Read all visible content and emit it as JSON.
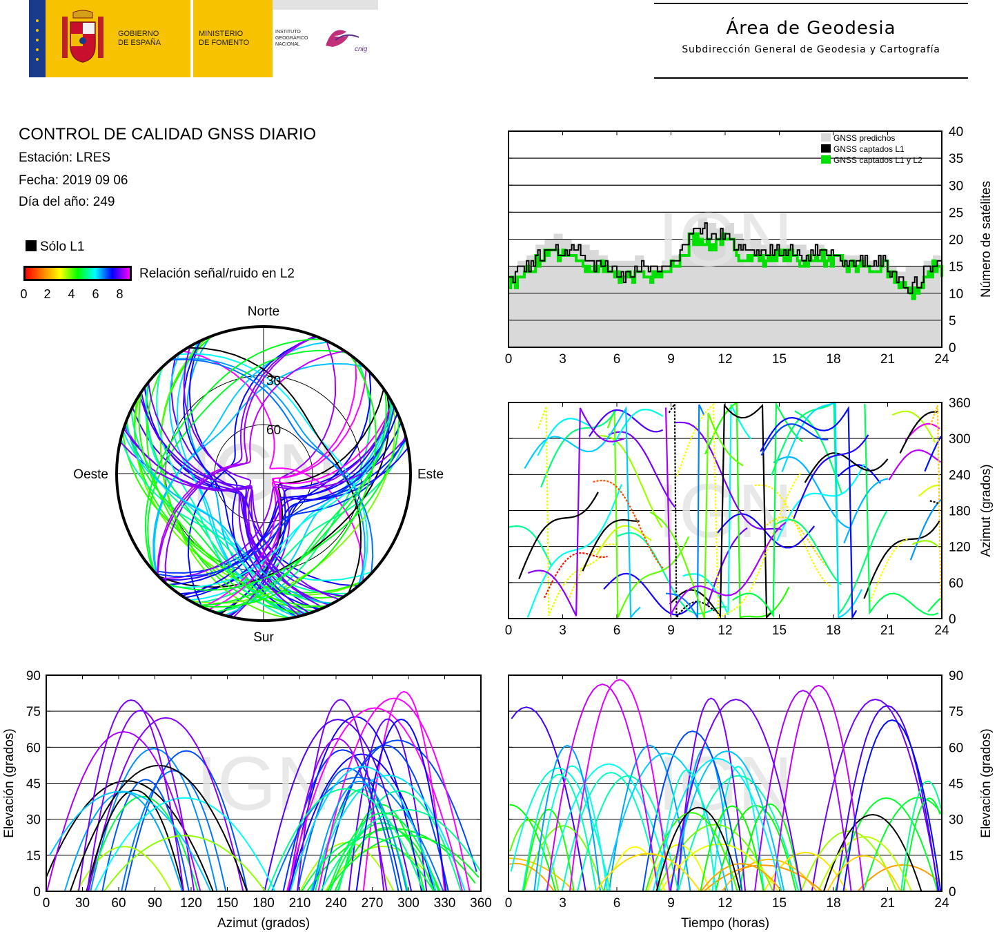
{
  "header": {
    "gobierno": [
      "GOBIERNO",
      "DE ESPAÑA"
    ],
    "ministerio": [
      "MINISTERIO",
      "DE FOMENTO"
    ],
    "ign": [
      "INSTITUTO",
      "GEOGRÁFICO",
      "NACIONAL"
    ],
    "cnig": "cnig",
    "area_title": "Área de Geodesia",
    "area_subtitle": "Subdirección General de Geodesia y Cartografía"
  },
  "report": {
    "title": "CONTROL DE CALIDAD GNSS DIARIO",
    "station": "Estación: LRES",
    "date": "Fecha: 2019 09 06",
    "doy": "Día del año: 249"
  },
  "legend": {
    "l1_only": "Sólo L1",
    "snr_label": "Relación señal/ruido en L2",
    "snr_ticks": [
      "0",
      "2",
      "4",
      "6",
      "8"
    ]
  },
  "watermark": "IGN",
  "chart_data": [
    {
      "type": "line",
      "ylabel": "Número de satélites",
      "xlim": [
        0,
        24
      ],
      "ylim": [
        0,
        40
      ],
      "x_ticks": [
        "0",
        "3",
        "6",
        "9",
        "12",
        "15",
        "18",
        "21",
        "24"
      ],
      "y_ticks": [
        "0",
        "5",
        "10",
        "15",
        "20",
        "25",
        "30",
        "35",
        "40"
      ],
      "legend_placement": "top-right",
      "series": [
        {
          "name": "GNSS predichos",
          "color": "#d9d9d9",
          "x": [
            0,
            0.5,
            1,
            1.5,
            2,
            2.5,
            3,
            3.5,
            4,
            4.5,
            5,
            5.5,
            6,
            6.5,
            7,
            7.5,
            8,
            8.5,
            9,
            9.5,
            10,
            10.5,
            11,
            11.5,
            12,
            12.5,
            13,
            13.5,
            14,
            14.5,
            15,
            15.5,
            16,
            16.5,
            17,
            17.5,
            18,
            18.5,
            19,
            19.5,
            20,
            20.5,
            21,
            21.5,
            22,
            22.5,
            23,
            23.5,
            24
          ],
          "values": [
            15,
            16,
            17,
            19,
            20,
            21,
            20,
            19,
            19,
            18,
            17,
            16,
            16,
            16,
            17,
            15,
            15,
            16,
            17,
            19,
            22,
            24,
            23,
            22,
            23,
            21,
            20,
            20,
            19,
            19,
            19,
            19,
            19,
            18,
            19,
            18,
            17,
            17,
            17,
            17,
            16,
            17,
            15,
            14,
            15,
            15,
            16,
            17,
            17
          ]
        },
        {
          "name": "GNSS captados L1",
          "color": "#000000",
          "x": [
            0,
            0.5,
            1,
            1.5,
            2,
            2.5,
            3,
            3.5,
            4,
            4.5,
            5,
            5.5,
            6,
            6.5,
            7,
            7.5,
            8,
            8.5,
            9,
            9.5,
            10,
            10.5,
            11,
            11.5,
            12,
            12.5,
            13,
            13.5,
            14,
            14.5,
            15,
            15.5,
            16,
            16.5,
            17,
            17.5,
            18,
            18.5,
            19,
            19.5,
            20,
            20.5,
            21,
            21.5,
            22,
            22.5,
            23,
            23.5,
            24
          ],
          "values": [
            13,
            14,
            15,
            17,
            19,
            18,
            18,
            18,
            17,
            15,
            16,
            15,
            13,
            14,
            15,
            14,
            14,
            15,
            16,
            18,
            21,
            22,
            20,
            21,
            20,
            18,
            18,
            18,
            17,
            18,
            18,
            18,
            17,
            17,
            18,
            17,
            17,
            16,
            16,
            16,
            15,
            16,
            13,
            12,
            11,
            12,
            14,
            16,
            15
          ]
        },
        {
          "name": "GNSS captados L1 y L2",
          "color": "#00e000",
          "x": [
            0,
            0.5,
            1,
            1.5,
            2,
            2.5,
            3,
            3.5,
            4,
            4.5,
            5,
            5.5,
            6,
            6.5,
            7,
            7.5,
            8,
            8.5,
            9,
            9.5,
            10,
            10.5,
            11,
            11.5,
            12,
            12.5,
            13,
            13.5,
            14,
            14.5,
            15,
            15.5,
            16,
            16.5,
            17,
            17.5,
            18,
            18.5,
            19,
            19.5,
            20,
            20.5,
            21,
            21.5,
            22,
            22.5,
            23,
            23.5,
            24
          ],
          "values": [
            12,
            13,
            14,
            16,
            18,
            17,
            17,
            16,
            15,
            14,
            15,
            14,
            13,
            13,
            14,
            13,
            13,
            14,
            15,
            17,
            20,
            20,
            19,
            20,
            19,
            17,
            17,
            17,
            16,
            17,
            17,
            17,
            16,
            16,
            17,
            16,
            16,
            15,
            15,
            15,
            14,
            15,
            13,
            12,
            10,
            11,
            13,
            15,
            14
          ]
        }
      ]
    },
    {
      "type": "scatter",
      "ylabel": "Azimut (grados)",
      "xlim": [
        0,
        24
      ],
      "ylim": [
        0,
        360
      ],
      "x_ticks": [
        "0",
        "3",
        "6",
        "9",
        "12",
        "15",
        "18",
        "21",
        "24"
      ],
      "y_ticks": [
        "0",
        "60",
        "120",
        "180",
        "240",
        "300",
        "360"
      ]
    },
    {
      "type": "scatter",
      "xlabel": "Azimut (grados)",
      "ylabel": "Elevación (grados)",
      "xlim": [
        0,
        360
      ],
      "ylim": [
        0,
        90
      ],
      "x_ticks": [
        "0",
        "30",
        "60",
        "90",
        "120",
        "150",
        "180",
        "210",
        "240",
        "270",
        "300",
        "330",
        "360"
      ],
      "y_ticks": [
        "0",
        "15",
        "30",
        "45",
        "60",
        "75",
        "90"
      ]
    },
    {
      "type": "scatter",
      "xlabel": "Tiempo (horas)",
      "ylabel": "Elevación (grados)",
      "xlim": [
        0,
        24
      ],
      "ylim": [
        0,
        90
      ],
      "x_ticks": [
        "0",
        "3",
        "6",
        "9",
        "12",
        "15",
        "18",
        "21",
        "24"
      ],
      "y_ticks": [
        "0",
        "15",
        "30",
        "45",
        "60",
        "75",
        "90"
      ]
    },
    {
      "type": "scatter",
      "polar": true,
      "cardinals": {
        "north": "Norte",
        "south": "Sur",
        "east": "Este",
        "west": "Oeste"
      },
      "rings": [
        "30",
        "60"
      ]
    }
  ]
}
